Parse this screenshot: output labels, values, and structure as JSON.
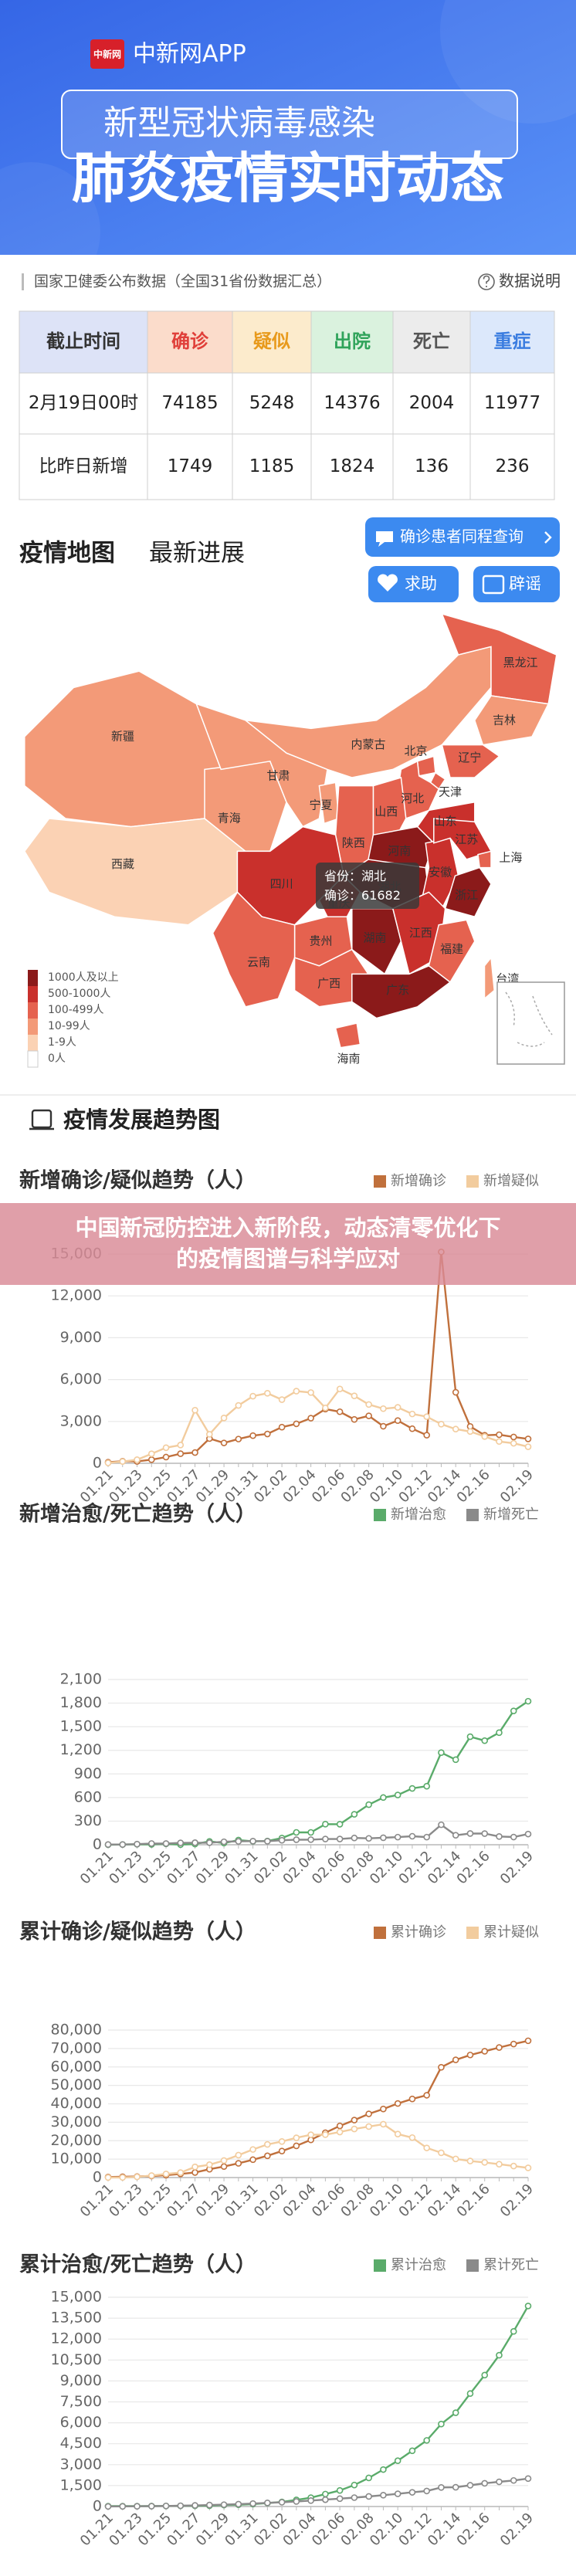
{
  "header": {
    "logo": "中新网",
    "app_name": "中新网APP",
    "banner": "新型冠状病毒感染",
    "title": "肺炎疫情实时动态"
  },
  "source": {
    "text": "国家卫健委公布数据（全国31省份数据汇总）",
    "help": "数据说明"
  },
  "table": {
    "columns": [
      "截止时间",
      "确诊",
      "疑似",
      "出院",
      "死亡",
      "重症"
    ],
    "rows": [
      [
        "2月19日00时",
        74185,
        5248,
        14376,
        2004,
        11977
      ],
      [
        "比昨日新增",
        1749,
        1185,
        1824,
        136,
        236
      ]
    ]
  },
  "map_section": {
    "title": "疫情地图",
    "subtitle": "最新进展",
    "buttons": [
      "确诊患者同程查询",
      "求助",
      "辟谣"
    ]
  },
  "map": {
    "legend": [
      {
        "label": "1000人及以上",
        "color": "#8b1a1a"
      },
      {
        "label": "500-1000人",
        "color": "#c9302c"
      },
      {
        "label": "100-499人",
        "color": "#e5624f"
      },
      {
        "label": "10-99人",
        "color": "#f39a78"
      },
      {
        "label": "1-9人",
        "color": "#fbd2b4"
      },
      {
        "label": "0人",
        "color": "#ffffff"
      }
    ],
    "regions": [
      {
        "name": "新疆",
        "level": 3
      },
      {
        "name": "西藏",
        "level": 4
      },
      {
        "name": "青海",
        "level": 3
      },
      {
        "name": "甘肃",
        "level": 3
      },
      {
        "name": "内蒙古",
        "level": 3
      },
      {
        "name": "黑龙江",
        "level": 2
      },
      {
        "name": "吉林",
        "level": 3
      },
      {
        "name": "辽宁",
        "level": 2
      },
      {
        "name": "北京",
        "level": 2
      },
      {
        "name": "天津",
        "level": 2
      },
      {
        "name": "河北",
        "level": 2
      },
      {
        "name": "山西",
        "level": 2
      },
      {
        "name": "宁夏",
        "level": 3
      },
      {
        "name": "陕西",
        "level": 2
      },
      {
        "name": "山东",
        "level": 1
      },
      {
        "name": "河南",
        "level": 0
      },
      {
        "name": "四川",
        "level": 1
      },
      {
        "name": "重庆",
        "level": 1
      },
      {
        "name": "湖北",
        "level": 0
      },
      {
        "name": "安徽",
        "level": 1
      },
      {
        "name": "江苏",
        "level": 1
      },
      {
        "name": "上海",
        "level": 2
      },
      {
        "name": "浙江",
        "level": 0
      },
      {
        "name": "贵州",
        "level": 2
      },
      {
        "name": "湖南",
        "level": 0
      },
      {
        "name": "江西",
        "level": 1
      },
      {
        "name": "福建",
        "level": 2
      },
      {
        "name": "台湾",
        "level": 3
      },
      {
        "name": "云南",
        "level": 2
      },
      {
        "name": "广西",
        "level": 2
      },
      {
        "name": "广东",
        "level": 0
      },
      {
        "name": "海南",
        "level": 2
      }
    ],
    "tooltip": {
      "province_label": "省份：",
      "province": "湖北",
      "confirmed_label": "确诊：",
      "confirmed": 61682
    }
  },
  "trend_section": {
    "title": "疫情发展趋势图"
  },
  "overlay": {
    "lines": [
      "中国新冠防控进入新阶段，动态清零优化下",
      "的疫情图谱与科学应对"
    ]
  },
  "chart_data": [
    {
      "type": "line",
      "title": "新增确诊/疑似趋势（人）",
      "categories": [
        "01.21",
        null,
        "01.23",
        null,
        "01.25",
        null,
        "01.27",
        null,
        "01.29",
        null,
        "01.31",
        null,
        "02.02",
        null,
        "02.04",
        null,
        "02.06",
        null,
        "02.08",
        null,
        "02.10",
        null,
        "02.12",
        null,
        "02.14",
        null,
        "02.16",
        null,
        null,
        "02.19"
      ],
      "series": [
        {
          "name": "新增确诊",
          "color": "#c0703c",
          "values": [
            77,
            149,
            131,
            259,
            444,
            688,
            769,
            1771,
            1459,
            1737,
            1982,
            2102,
            2590,
            2829,
            3235,
            3887,
            3694,
            3143,
            3399,
            2656,
            3062,
            2478,
            2015,
            15152,
            5090,
            2641,
            2009,
            2048,
            1886,
            1749
          ]
        },
        {
          "name": "新增疑似",
          "color": "#f2cc9e",
          "values": [
            27,
            130,
            257,
            680,
            1118,
            1309,
            3806,
            2077,
            3248,
            4148,
            4812,
            5019,
            4562,
            5173,
            5072,
            3971,
            5328,
            4833,
            4214,
            3916,
            4008,
            3536,
            3342,
            2807,
            2450,
            2277,
            1918,
            1563,
            1432,
            1185
          ]
        }
      ],
      "ylim": [
        0,
        15000
      ],
      "yticks": [
        0,
        {
          "value": 3000,
          "label": "3,000"
        },
        {
          "value": 6000,
          "label": "6,000"
        },
        {
          "value": 9000,
          "label": "9,000"
        },
        {
          "value": 12000,
          "label": "12,000"
        },
        {
          "value": 15000,
          "label": "15,000"
        }
      ],
      "grid": true
    },
    {
      "type": "line",
      "title": "新增治愈/死亡趋势（人）",
      "categories": [
        "01.21",
        null,
        "01.23",
        null,
        "01.25",
        null,
        "01.27",
        null,
        "01.29",
        null,
        "01.31",
        null,
        "02.02",
        null,
        "02.04",
        null,
        "02.06",
        null,
        "02.08",
        null,
        "02.10",
        null,
        "02.12",
        null,
        "02.14",
        null,
        "02.16",
        null,
        null,
        "02.19"
      ],
      "series": [
        {
          "name": "新增治愈",
          "color": "#5aab6a",
          "values": [
            0,
            3,
            6,
            4,
            11,
            2,
            9,
            43,
            21,
            60,
            43,
            47,
            85,
            157,
            157,
            262,
            261,
            387,
            510,
            600,
            632,
            716,
            744,
            1171,
            1081,
            1373,
            1323,
            1425,
            1701,
            1824
          ]
        },
        {
          "name": "新增死亡",
          "color": "#8a8a8a",
          "values": [
            3,
            3,
            8,
            16,
            15,
            24,
            26,
            26,
            38,
            43,
            46,
            45,
            57,
            64,
            65,
            73,
            73,
            86,
            81,
            89,
            97,
            108,
            97,
            254,
            121,
            143,
            142,
            105,
            98,
            136
          ]
        }
      ],
      "ylim": [
        0,
        2100
      ],
      "yticks": [
        0,
        300,
        600,
        900,
        {
          "value": 1200,
          "label": "1,200"
        },
        {
          "value": 1500,
          "label": "1,500"
        },
        {
          "value": 1800,
          "label": "1,800"
        },
        {
          "value": 2100,
          "label": "2,100"
        }
      ],
      "grid": true
    },
    {
      "type": "line",
      "title": "累计确诊/疑似趋势（人）",
      "categories": [
        "01.21",
        null,
        "01.23",
        null,
        "01.25",
        null,
        "01.27",
        null,
        "01.29",
        null,
        "01.31",
        null,
        "02.02",
        null,
        "02.04",
        null,
        "02.06",
        null,
        "02.08",
        null,
        "02.10",
        null,
        "02.12",
        null,
        "02.14",
        null,
        "02.16",
        null,
        null,
        "02.19"
      ],
      "series": [
        {
          "name": "累计确诊",
          "color": "#c0703c",
          "values": [
            291,
            440,
            571,
            830,
            1287,
            1975,
            2744,
            4515,
            5974,
            7711,
            9692,
            11791,
            14380,
            17205,
            20438,
            24324,
            28018,
            31161,
            34546,
            37198,
            40171,
            42638,
            44653,
            59804,
            63851,
            66492,
            68500,
            70548,
            72436,
            74185
          ]
        },
        {
          "name": "累计疑似",
          "color": "#f2cc9e",
          "values": [
            37,
            54,
            393,
            1072,
            1965,
            2684,
            5794,
            6973,
            9239,
            12167,
            15238,
            17988,
            19544,
            21558,
            23214,
            23260,
            24702,
            26359,
            27657,
            28942,
            23589,
            21675,
            16067,
            13435,
            10109,
            8969,
            8228,
            7264,
            6242,
            5248
          ]
        }
      ],
      "ylim": [
        0,
        80000
      ],
      "yticks": [
        0,
        {
          "value": 10000,
          "label": "10,000"
        },
        {
          "value": 20000,
          "label": "20,000"
        },
        {
          "value": 30000,
          "label": "30,000"
        },
        {
          "value": 40000,
          "label": "40,000"
        },
        {
          "value": 50000,
          "label": "50,000"
        },
        {
          "value": 60000,
          "label": "60,000"
        },
        {
          "value": 70000,
          "label": "70,000"
        },
        {
          "value": 80000,
          "label": "80,000"
        }
      ],
      "grid": true
    },
    {
      "type": "line",
      "title": "累计治愈/死亡趋势（人）",
      "categories": [
        "01.21",
        null,
        "01.23",
        null,
        "01.25",
        null,
        "01.27",
        null,
        "01.29",
        null,
        "01.31",
        null,
        "02.02",
        null,
        "02.04",
        null,
        "02.06",
        null,
        "02.08",
        null,
        "02.10",
        null,
        "02.12",
        null,
        "02.14",
        null,
        "02.16",
        null,
        null,
        "02.19"
      ],
      "series": [
        {
          "name": "累计治愈",
          "color": "#5aab6a",
          "values": [
            25,
            25,
            28,
            34,
            38,
            49,
            51,
            60,
            103,
            124,
            171,
            243,
            328,
            475,
            632,
            892,
            1153,
            1540,
            2050,
            2649,
            3281,
            3996,
            4740,
            5911,
            6723,
            8096,
            9419,
            10844,
            12552,
            14376
          ]
        },
        {
          "name": "累计死亡",
          "color": "#8a8a8a",
          "values": [
            6,
            9,
            17,
            25,
            41,
            56,
            80,
            106,
            132,
            170,
            213,
            259,
            304,
            361,
            425,
            490,
            563,
            636,
            722,
            811,
            908,
            1016,
            1113,
            1367,
            1380,
            1523,
            1665,
            1770,
            1868,
            2004
          ]
        }
      ],
      "ylim": [
        0,
        15000
      ],
      "yticks": [
        0,
        {
          "value": 1500,
          "label": "1,500"
        },
        {
          "value": 3000,
          "label": "3,000"
        },
        {
          "value": 4500,
          "label": "4,500"
        },
        {
          "value": 6000,
          "label": "6,000"
        },
        {
          "value": 7500,
          "label": "7,500"
        },
        {
          "value": 9000,
          "label": "9,000"
        },
        {
          "value": 10500,
          "label": "10,500"
        },
        {
          "value": 12000,
          "label": "12,000"
        },
        {
          "value": 13500,
          "label": "13,500"
        },
        {
          "value": 15000,
          "label": "15,000"
        }
      ],
      "grid": true
    }
  ]
}
